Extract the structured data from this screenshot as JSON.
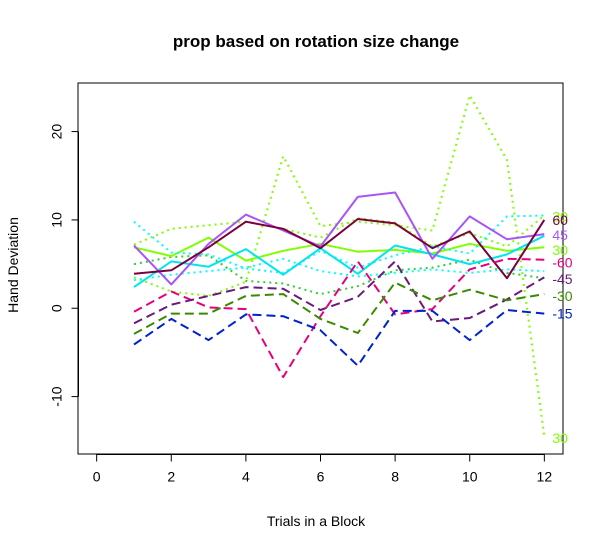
{
  "chart_data": {
    "type": "line",
    "title": "prop based on rotation size change",
    "xlabel": "Trials in a Block",
    "ylabel": "Hand Deviation",
    "xlim": [
      -0.5,
      12.5
    ],
    "ylim": [
      -16.5,
      25.5
    ],
    "xticks": [
      0,
      2,
      4,
      6,
      8,
      10,
      12
    ],
    "yticks": [
      -10,
      0,
      10,
      20
    ],
    "grid": false,
    "legend": "none",
    "x": [
      1,
      2,
      3,
      4,
      5,
      6,
      7,
      8,
      9,
      10,
      11,
      12
    ],
    "series": [
      {
        "label": "30",
        "color": "#7fff00",
        "dash": "dotted",
        "values": [
          3.5,
          1.9,
          1.4,
          3.0,
          17.2,
          9.3,
          9.8,
          9.4,
          8.8,
          24.1,
          16.8,
          -14.5
        ]
      },
      {
        "label": "30",
        "color": "#7fff00",
        "dash": "dotted",
        "values": [
          7.2,
          9.0,
          9.4,
          9.8,
          9.0,
          8.0,
          10.2,
          9.7,
          7.0,
          8.5,
          7.0,
          10.5
        ]
      },
      {
        "label": "30",
        "color": "#32cd32",
        "dash": "dotted",
        "values": [
          5.0,
          5.8,
          6.0,
          3.1,
          2.8,
          1.6,
          2.5,
          4.3,
          4.6,
          5.5,
          4.0,
          3.4
        ]
      },
      {
        "label": "30",
        "color": "#7fff00",
        "dash": "solid",
        "values": [
          6.9,
          5.9,
          8.0,
          5.4,
          6.5,
          7.3,
          6.4,
          6.6,
          6.2,
          7.3,
          6.5,
          6.9
        ]
      },
      {
        "label": "30",
        "color": "#00ffff",
        "dash": "dotted",
        "values": [
          9.8,
          6.3,
          6.1,
          4.5,
          4.0,
          6.5,
          4.6,
          6.0,
          7.0,
          6.2,
          10.4,
          10.5
        ]
      },
      {
        "label": "30",
        "color": "#00ffff",
        "dash": "dotted",
        "values": [
          3.2,
          3.8,
          4.2,
          4.6,
          5.6,
          4.2,
          3.6,
          4.0,
          4.4,
          4.0,
          4.4,
          4.2
        ]
      },
      {
        "label": "30",
        "color": "#00e5ee",
        "dash": "solid",
        "values": [
          2.4,
          5.3,
          4.7,
          6.7,
          3.8,
          6.8,
          3.9,
          7.1,
          6.1,
          5.0,
          6.1,
          8.2
        ]
      },
      {
        "label": "45",
        "color": "#a855f7",
        "dash": "solid",
        "values": [
          7.1,
          2.7,
          7.3,
          10.6,
          8.8,
          7.0,
          12.6,
          13.1,
          5.6,
          10.4,
          7.8,
          8.4
        ]
      },
      {
        "label": "60",
        "color": "#7b0040",
        "dash": "solid",
        "values": [
          3.9,
          4.3,
          6.9,
          9.8,
          9.0,
          6.8,
          10.1,
          9.6,
          6.8,
          8.7,
          3.4,
          10.0
        ]
      },
      {
        "label": "-60",
        "color": "#e6007e",
        "dash": "dashed",
        "values": [
          -0.4,
          1.9,
          0.1,
          -0.1,
          -7.8,
          -0.9,
          5.3,
          -0.7,
          -0.1,
          4.4,
          5.6,
          5.5
        ]
      },
      {
        "label": "-45",
        "color": "#6a1a7a",
        "dash": "dashed",
        "values": [
          -1.7,
          0.4,
          1.4,
          2.4,
          2.2,
          -0.2,
          1.3,
          5.3,
          -1.5,
          -1.1,
          1.0,
          3.5
        ]
      },
      {
        "label": "-30",
        "color": "#3a8a00",
        "dash": "dashed",
        "values": [
          -2.9,
          -0.6,
          -0.6,
          1.4,
          1.6,
          -1.2,
          -2.8,
          2.9,
          0.9,
          2.1,
          0.9,
          1.6
        ]
      },
      {
        "label": "-15",
        "color": "#0022cc",
        "dash": "dashed",
        "values": [
          -4.1,
          -1.2,
          -3.6,
          -0.7,
          -0.9,
          -2.5,
          -6.5,
          -0.3,
          -0.3,
          -3.6,
          -0.2,
          -0.6
        ]
      }
    ],
    "end_labels": [
      {
        "text": "30",
        "color": "#7fff00",
        "y": 10.4
      },
      {
        "text": "60",
        "color": "#7b0040",
        "y": 10.0
      },
      {
        "text": "45",
        "color": "#a855f7",
        "y": 8.3
      },
      {
        "text": "30",
        "color": "#7fff00",
        "y": 6.6
      },
      {
        "text": "-60",
        "color": "#e6007e",
        "y": 5.2
      },
      {
        "text": "-45",
        "color": "#6a1a7a",
        "y": 3.3
      },
      {
        "text": "-30",
        "color": "#3a8a00",
        "y": 1.4
      },
      {
        "text": "-15",
        "color": "#0022cc",
        "y": -0.6
      },
      {
        "text": "30",
        "color": "#7fff00",
        "y": -14.7
      }
    ]
  }
}
